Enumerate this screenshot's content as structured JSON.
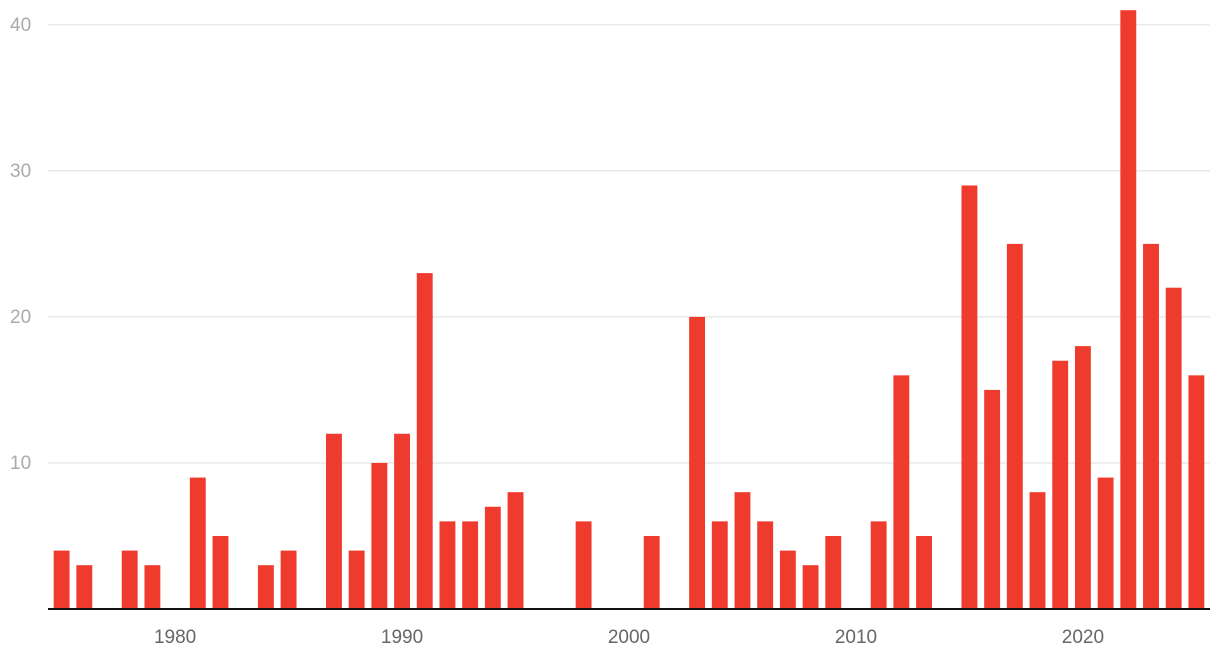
{
  "chart_data": {
    "type": "bar",
    "x": [
      1975,
      1976,
      1978,
      1979,
      1981,
      1982,
      1984,
      1985,
      1987,
      1988,
      1989,
      1990,
      1991,
      1992,
      1993,
      1994,
      1995,
      1998,
      2001,
      2003,
      2004,
      2005,
      2006,
      2007,
      2008,
      2009,
      2011,
      2012,
      2013,
      2015,
      2016,
      2017,
      2018,
      2019,
      2020,
      2021,
      2022,
      2023,
      2024,
      2025
    ],
    "values": [
      4,
      3,
      4,
      3,
      9,
      5,
      3,
      4,
      12,
      4,
      10,
      12,
      23,
      6,
      6,
      7,
      8,
      6,
      5,
      20,
      6,
      8,
      6,
      4,
      3,
      5,
      6,
      16,
      5,
      29,
      15,
      25,
      8,
      17,
      18,
      9,
      41,
      25,
      22,
      16
    ],
    "color": "#ee3b2e",
    "xlim": [
      1974.4,
      2025.6
    ],
    "xticks": [
      1980,
      1990,
      2000,
      2010,
      2020
    ],
    "ylim": [
      0,
      41.7
    ],
    "yticks": [
      10,
      20,
      30,
      40
    ],
    "grid": true
  }
}
